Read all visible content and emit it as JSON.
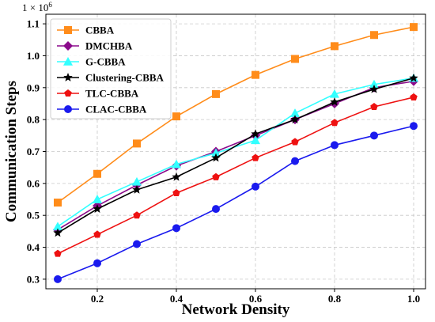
{
  "chart_data": {
    "type": "line",
    "title": "",
    "xlabel": "Network Density",
    "ylabel": "Communication Steps",
    "y_multiplier": "1 × 10",
    "y_multiplier_exp": "6",
    "xlim": [
      0.07,
      1.03
    ],
    "ylim": [
      0.27,
      1.13
    ],
    "xticks": [
      0.2,
      0.4,
      0.6,
      0.8,
      1.0
    ],
    "xtick_labels": [
      "0.2",
      "0.4",
      "0.6",
      "0.8",
      "1.0"
    ],
    "yticks": [
      0.3,
      0.4,
      0.5,
      0.6,
      0.7,
      0.8,
      0.9,
      1.0,
      1.1
    ],
    "ytick_labels": [
      "0.3",
      "0.4",
      "0.5",
      "0.6",
      "0.7",
      "0.8",
      "0.9",
      "1.0",
      "1.1"
    ],
    "grid": true,
    "legend_position": "top-left",
    "x": [
      0.1,
      0.2,
      0.3,
      0.4,
      0.5,
      0.6,
      0.7,
      0.8,
      0.9,
      1.0
    ],
    "series": [
      {
        "name": "CBBA",
        "color": "#ff8c1a",
        "marker": "square",
        "values": [
          0.54,
          0.63,
          0.725,
          0.81,
          0.88,
          0.94,
          0.99,
          1.03,
          1.065,
          1.09
        ]
      },
      {
        "name": "DMCHBA",
        "color": "#8b0a8b",
        "marker": "diamond",
        "values": [
          0.455,
          0.53,
          0.595,
          0.655,
          0.7,
          0.75,
          0.8,
          0.85,
          0.9,
          0.92
        ]
      },
      {
        "name": "G-CBBA",
        "color": "#33ffff",
        "marker": "triangle",
        "values": [
          0.465,
          0.55,
          0.605,
          0.66,
          0.695,
          0.735,
          0.82,
          0.88,
          0.91,
          0.93
        ]
      },
      {
        "name": "Clustering-CBBA",
        "color": "#000000",
        "marker": "star",
        "values": [
          0.445,
          0.52,
          0.58,
          0.62,
          0.68,
          0.755,
          0.8,
          0.855,
          0.895,
          0.93
        ]
      },
      {
        "name": "TLC-CBBA",
        "color": "#ee1111",
        "marker": "pentagon",
        "values": [
          0.38,
          0.44,
          0.5,
          0.57,
          0.62,
          0.68,
          0.73,
          0.79,
          0.84,
          0.87
        ]
      },
      {
        "name": "CLAC-CBBA",
        "color": "#1a1aee",
        "marker": "circle",
        "values": [
          0.3,
          0.35,
          0.41,
          0.46,
          0.52,
          0.59,
          0.67,
          0.72,
          0.75,
          0.78
        ]
      }
    ]
  }
}
